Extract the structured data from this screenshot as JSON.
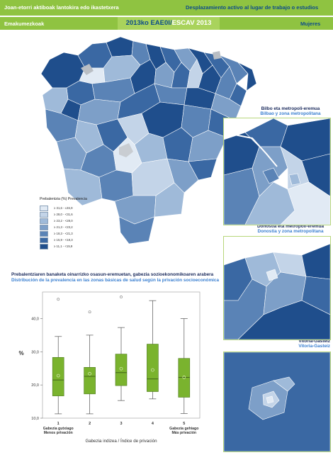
{
  "header": {
    "title_eu": "Joan-etorri aktiboak lantokira edo ikastetxera",
    "title_es": "Desplazamiento activo al lugar de  trabajo o estudios",
    "subgroup_eu": "Emakumezkoak",
    "subgroup_es": "Mujeres",
    "survey_eu": "2013ko EAE0I",
    "survey_sep": "/",
    "survey_es": "ESCAV 2013"
  },
  "colors": {
    "header_green": "#8fc341",
    "accent_blue": "#0d4c8a",
    "box_green": "#7ab32e"
  },
  "insets": [
    {
      "title_eu": "Bilbo eta metropoli-eremua",
      "title_es": "Bilbao y zona metropolitana"
    },
    {
      "title_eu": "Donostia eta metropoli-eremua",
      "title_es": "Donostia y zona metropolitana"
    },
    {
      "title_eu": "Vitoria-Gasteiz",
      "title_es": "Vitoria-Gasteiz"
    }
  ],
  "legend": {
    "title": "Prebalentzia (%) Prevalencia",
    "classes": [
      {
        "label": "≥ 31,6 - ≤46,9",
        "color": "#e1eaf4"
      },
      {
        "label": "≥ 28,0 - <31,6",
        "color": "#c3d4e8"
      },
      {
        "label": "≥ 23,2 - <28,0",
        "color": "#9fbad9"
      },
      {
        "label": "≥ 21,3 - <23,2",
        "color": "#7d9fc8"
      },
      {
        "label": "≥ 18,3 - <21,3",
        "color": "#5a83b6"
      },
      {
        "label": "≥ 15,9 - <18,3",
        "color": "#3a68a3"
      },
      {
        "label": "≥ 11,1 - <15,9",
        "color": "#1f4e8c"
      }
    ]
  },
  "distribution": {
    "title_eu": "Prebalentziaren banaketa oinarrizko osasun-eremuetan, gabezia sozioekonomikoaren arabera",
    "title_es": "Distribución de la prevalencia en las zonas básicas de salud según la privación socioeconómica"
  },
  "chart_data": {
    "type": "box",
    "categories": [
      "1",
      "2",
      "3",
      "4",
      "5"
    ],
    "ylabel": "%",
    "xlabel": "Gabezia indizea / Índice de privación",
    "ylim": [
      10,
      48
    ],
    "yticks": [
      "10,0",
      "20,0",
      "30,0",
      "40,0"
    ],
    "ytick_values": [
      10,
      20,
      30,
      40
    ],
    "xend_labels": {
      "low_eu": "Gabezia gutxiago",
      "low_es": "Menos privación",
      "high_eu": "Gabezia gehiago",
      "high_es": "Más privación"
    },
    "boxes": [
      {
        "category": "1",
        "min": 11.3,
        "q1": 16.7,
        "median": 21.5,
        "q3": 28.3,
        "max": 34.6,
        "mean": 22.8,
        "outliers": [
          45.8
        ]
      },
      {
        "category": "2",
        "min": 11.3,
        "q1": 17.3,
        "median": 22.6,
        "q3": 25.3,
        "max": 35.0,
        "mean": 23.4,
        "outliers": [
          42.0
        ]
      },
      {
        "category": "3",
        "min": 15.3,
        "q1": 19.8,
        "median": 23.7,
        "q3": 29.3,
        "max": 37.3,
        "mean": 24.9,
        "outliers": [
          46.5
        ]
      },
      {
        "category": "4",
        "min": 15.8,
        "q1": 18.0,
        "median": 21.8,
        "q3": 32.3,
        "max": 45.4,
        "mean": 24.5,
        "outliers": []
      },
      {
        "category": "5",
        "min": 11.4,
        "q1": 16.3,
        "median": 22.3,
        "q3": 28.0,
        "max": 40.0,
        "mean": 22.3,
        "outliers": []
      }
    ]
  }
}
